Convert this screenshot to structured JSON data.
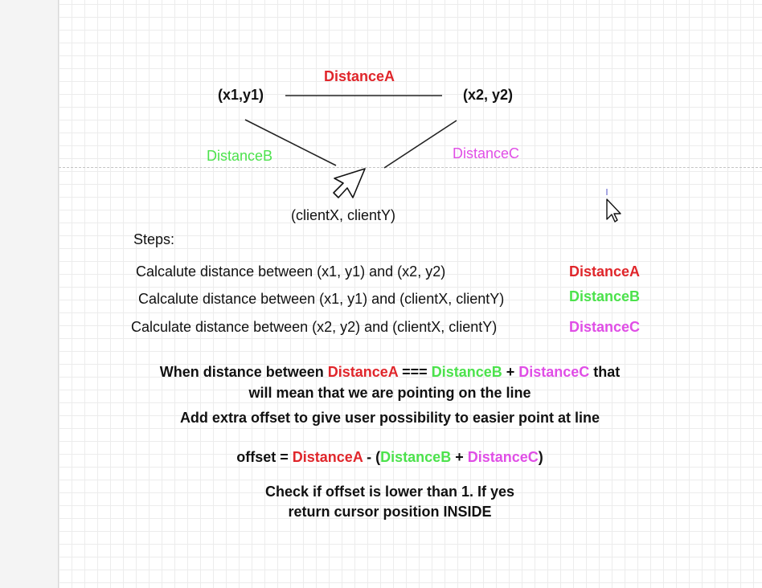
{
  "diagram": {
    "point1": "(x1,y1)",
    "point2": "(x2, y2)",
    "cursor_point": "(clientX, clientY)",
    "distance_a": "DistanceA",
    "distance_b": "DistanceB",
    "distance_c": "DistanceC"
  },
  "steps": {
    "heading": "Steps:",
    "items": [
      {
        "text": "Calcalute distance between (x1, y1) and (x2, y2)",
        "label": "DistanceA"
      },
      {
        "text": "Calcalute distance between (x1, y1) and (clientX, clientY)",
        "label": "DistanceB"
      },
      {
        "text": "Calculate distance between (x2, y2) and (clientX, clientY)",
        "label": "DistanceC"
      }
    ]
  },
  "explanation": {
    "line1_prefix": "When distance between ",
    "line1_a": "DistanceA",
    "line1_eq": " === ",
    "line1_b": "DistanceB",
    "line1_plus": " + ",
    "line1_c": "DistanceC",
    "line1_suffix": " that",
    "line2": "will mean that we are pointing on the line",
    "line3": "Add extra offset to give user possibility to easier point at line"
  },
  "formula": {
    "prefix": "offset = ",
    "a": "DistanceA",
    "minus_open": " - (",
    "b": "DistanceB",
    "plus": " + ",
    "c": "DistanceC",
    "close": ")"
  },
  "check": {
    "line1": "Check if offset is lower than 1. If yes",
    "line2": "return cursor position INSIDE"
  },
  "colors": {
    "distance_a": "#e0262b",
    "distance_b": "#4ce24c",
    "distance_c": "#e04ee6"
  },
  "icons": [
    "cursor-arrow-icon",
    "mouse-pointer-icon"
  ]
}
